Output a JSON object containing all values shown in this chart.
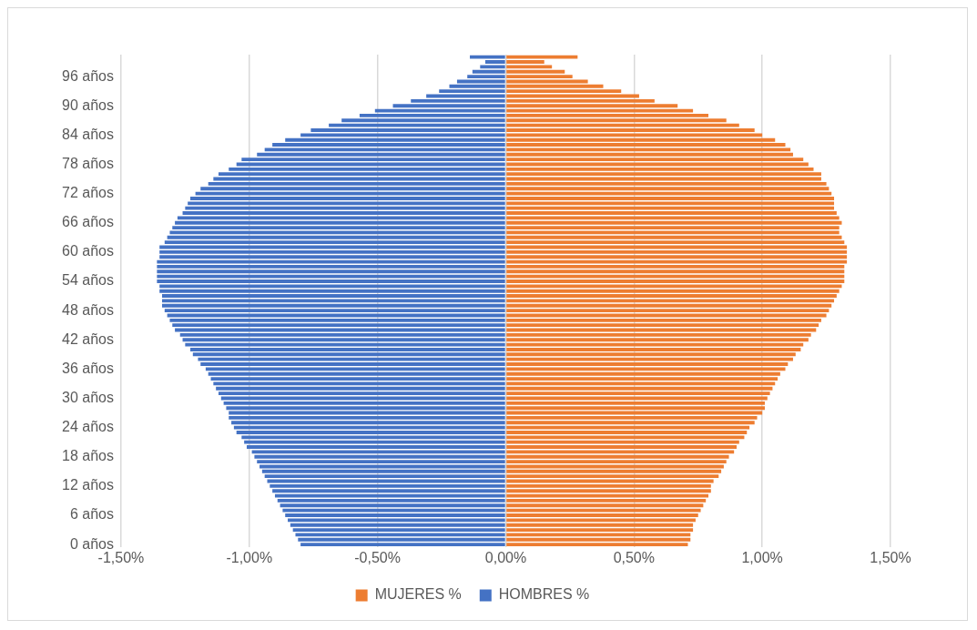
{
  "chart_data": {
    "type": "bar",
    "orientation": "horizontal",
    "stacked": true,
    "categories": [
      null,
      null,
      null,
      null,
      "96 años",
      null,
      null,
      null,
      null,
      null,
      "90 años",
      null,
      null,
      null,
      null,
      null,
      "84 años",
      null,
      null,
      null,
      null,
      null,
      "78 años",
      null,
      null,
      null,
      null,
      null,
      "72 años",
      null,
      null,
      null,
      null,
      null,
      "66 años",
      null,
      null,
      null,
      null,
      null,
      "60 años",
      null,
      null,
      null,
      null,
      null,
      "54 años",
      null,
      null,
      null,
      null,
      null,
      "48 años",
      null,
      null,
      null,
      null,
      null,
      "42 años",
      null,
      null,
      null,
      null,
      null,
      "36 años",
      null,
      null,
      null,
      null,
      null,
      "30 años",
      null,
      null,
      null,
      null,
      null,
      "24 años",
      null,
      null,
      null,
      null,
      null,
      "18 años",
      null,
      null,
      null,
      null,
      null,
      "12 años",
      null,
      null,
      null,
      null,
      null,
      "6 años",
      null,
      null,
      null,
      null,
      null,
      "0 años"
    ],
    "series": [
      {
        "name": "MUJERES %",
        "color": "#ed7d31",
        "values": [
          0.28,
          0.15,
          0.18,
          0.23,
          0.26,
          0.32,
          0.38,
          0.45,
          0.52,
          0.58,
          0.67,
          0.73,
          0.79,
          0.86,
          0.91,
          0.97,
          1.0,
          1.05,
          1.09,
          1.11,
          1.12,
          1.16,
          1.18,
          1.2,
          1.23,
          1.23,
          1.25,
          1.26,
          1.27,
          1.28,
          1.28,
          1.28,
          1.29,
          1.3,
          1.31,
          1.3,
          1.3,
          1.31,
          1.32,
          1.33,
          1.33,
          1.33,
          1.33,
          1.32,
          1.32,
          1.32,
          1.32,
          1.31,
          1.3,
          1.29,
          1.28,
          1.27,
          1.26,
          1.25,
          1.23,
          1.22,
          1.21,
          1.19,
          1.18,
          1.16,
          1.15,
          1.13,
          1.12,
          1.1,
          1.09,
          1.07,
          1.06,
          1.05,
          1.04,
          1.03,
          1.02,
          1.01,
          1.01,
          1.0,
          0.98,
          0.97,
          0.95,
          0.94,
          0.93,
          0.91,
          0.9,
          0.89,
          0.87,
          0.86,
          0.85,
          0.84,
          0.83,
          0.81,
          0.8,
          0.8,
          0.79,
          0.78,
          0.77,
          0.76,
          0.75,
          0.74,
          0.73,
          0.73,
          0.72,
          0.72,
          0.71
        ]
      },
      {
        "name": "HOMBRES %",
        "color": "#4472c4",
        "values": [
          -0.14,
          -0.08,
          -0.1,
          -0.13,
          -0.15,
          -0.19,
          -0.22,
          -0.26,
          -0.31,
          -0.37,
          -0.44,
          -0.51,
          -0.57,
          -0.64,
          -0.69,
          -0.76,
          -0.8,
          -0.86,
          -0.91,
          -0.94,
          -0.97,
          -1.03,
          -1.05,
          -1.08,
          -1.12,
          -1.14,
          -1.16,
          -1.19,
          -1.21,
          -1.23,
          -1.24,
          -1.25,
          -1.26,
          -1.28,
          -1.29,
          -1.3,
          -1.31,
          -1.32,
          -1.33,
          -1.35,
          -1.35,
          -1.35,
          -1.36,
          -1.36,
          -1.36,
          -1.36,
          -1.36,
          -1.35,
          -1.35,
          -1.34,
          -1.34,
          -1.34,
          -1.33,
          -1.32,
          -1.31,
          -1.3,
          -1.29,
          -1.27,
          -1.26,
          -1.25,
          -1.23,
          -1.22,
          -1.2,
          -1.19,
          -1.17,
          -1.16,
          -1.15,
          -1.14,
          -1.13,
          -1.12,
          -1.11,
          -1.1,
          -1.09,
          -1.08,
          -1.08,
          -1.07,
          -1.06,
          -1.05,
          -1.03,
          -1.02,
          -1.01,
          -0.99,
          -0.98,
          -0.97,
          -0.96,
          -0.95,
          -0.94,
          -0.93,
          -0.92,
          -0.91,
          -0.9,
          -0.89,
          -0.88,
          -0.87,
          -0.86,
          -0.85,
          -0.84,
          -0.83,
          -0.82,
          -0.81,
          -0.8
        ]
      }
    ],
    "xlim": [
      -1.5,
      1.5
    ],
    "xticks": [
      {
        "value": -1.5,
        "label": "-1,50%"
      },
      {
        "value": -1,
        "label": "-1,00%"
      },
      {
        "value": -0.5,
        "label": "-0,50%"
      },
      {
        "value": 0,
        "label": "0,00%"
      },
      {
        "value": 0.5,
        "label": "0,50%"
      },
      {
        "value": 1,
        "label": "1,00%"
      },
      {
        "value": 1.5,
        "label": "1,50%"
      }
    ],
    "grid": "x",
    "legend": "bottom"
  }
}
